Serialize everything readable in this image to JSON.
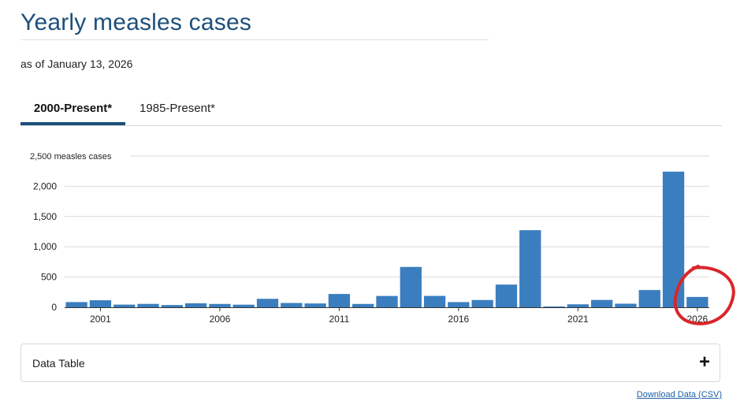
{
  "header": {
    "title": "Yearly measles cases",
    "as_of": "as of January 13, 2026"
  },
  "tabs": [
    {
      "label": "2000-Present*",
      "active": true
    },
    {
      "label": "1985-Present*",
      "active": false
    }
  ],
  "chart_data": {
    "type": "bar",
    "title": "Yearly measles cases",
    "ylabel": "measles cases",
    "ylim": [
      0,
      2500
    ],
    "yticks": [
      0,
      500,
      1000,
      1500,
      2000,
      2500
    ],
    "ytick_labels": [
      "0",
      "500",
      "1,000",
      "1,500",
      "2,000",
      "2,500 measles cases"
    ],
    "xtick_years": [
      2001,
      2006,
      2011,
      2016,
      2021,
      2026
    ],
    "xtick_labels": [
      "2001",
      "2006",
      "2011",
      "2016",
      "2021",
      "2026"
    ],
    "categories": [
      2000,
      2001,
      2002,
      2003,
      2004,
      2005,
      2006,
      2007,
      2008,
      2009,
      2010,
      2011,
      2012,
      2013,
      2014,
      2015,
      2016,
      2017,
      2018,
      2019,
      2020,
      2021,
      2022,
      2023,
      2024,
      2025,
      2026
    ],
    "values": [
      86,
      116,
      44,
      56,
      37,
      66,
      55,
      43,
      140,
      71,
      63,
      220,
      55,
      187,
      667,
      188,
      86,
      120,
      375,
      1274,
      13,
      49,
      121,
      59,
      285,
      2242,
      171
    ],
    "color": "#3a7ebf",
    "grid": true,
    "annotation": {
      "type": "circle",
      "color": "#d9262b",
      "category": 2026
    }
  },
  "data_table": {
    "label": "Data Table",
    "toggle_icon": "+"
  },
  "download": {
    "label": "Download Data (CSV)"
  }
}
